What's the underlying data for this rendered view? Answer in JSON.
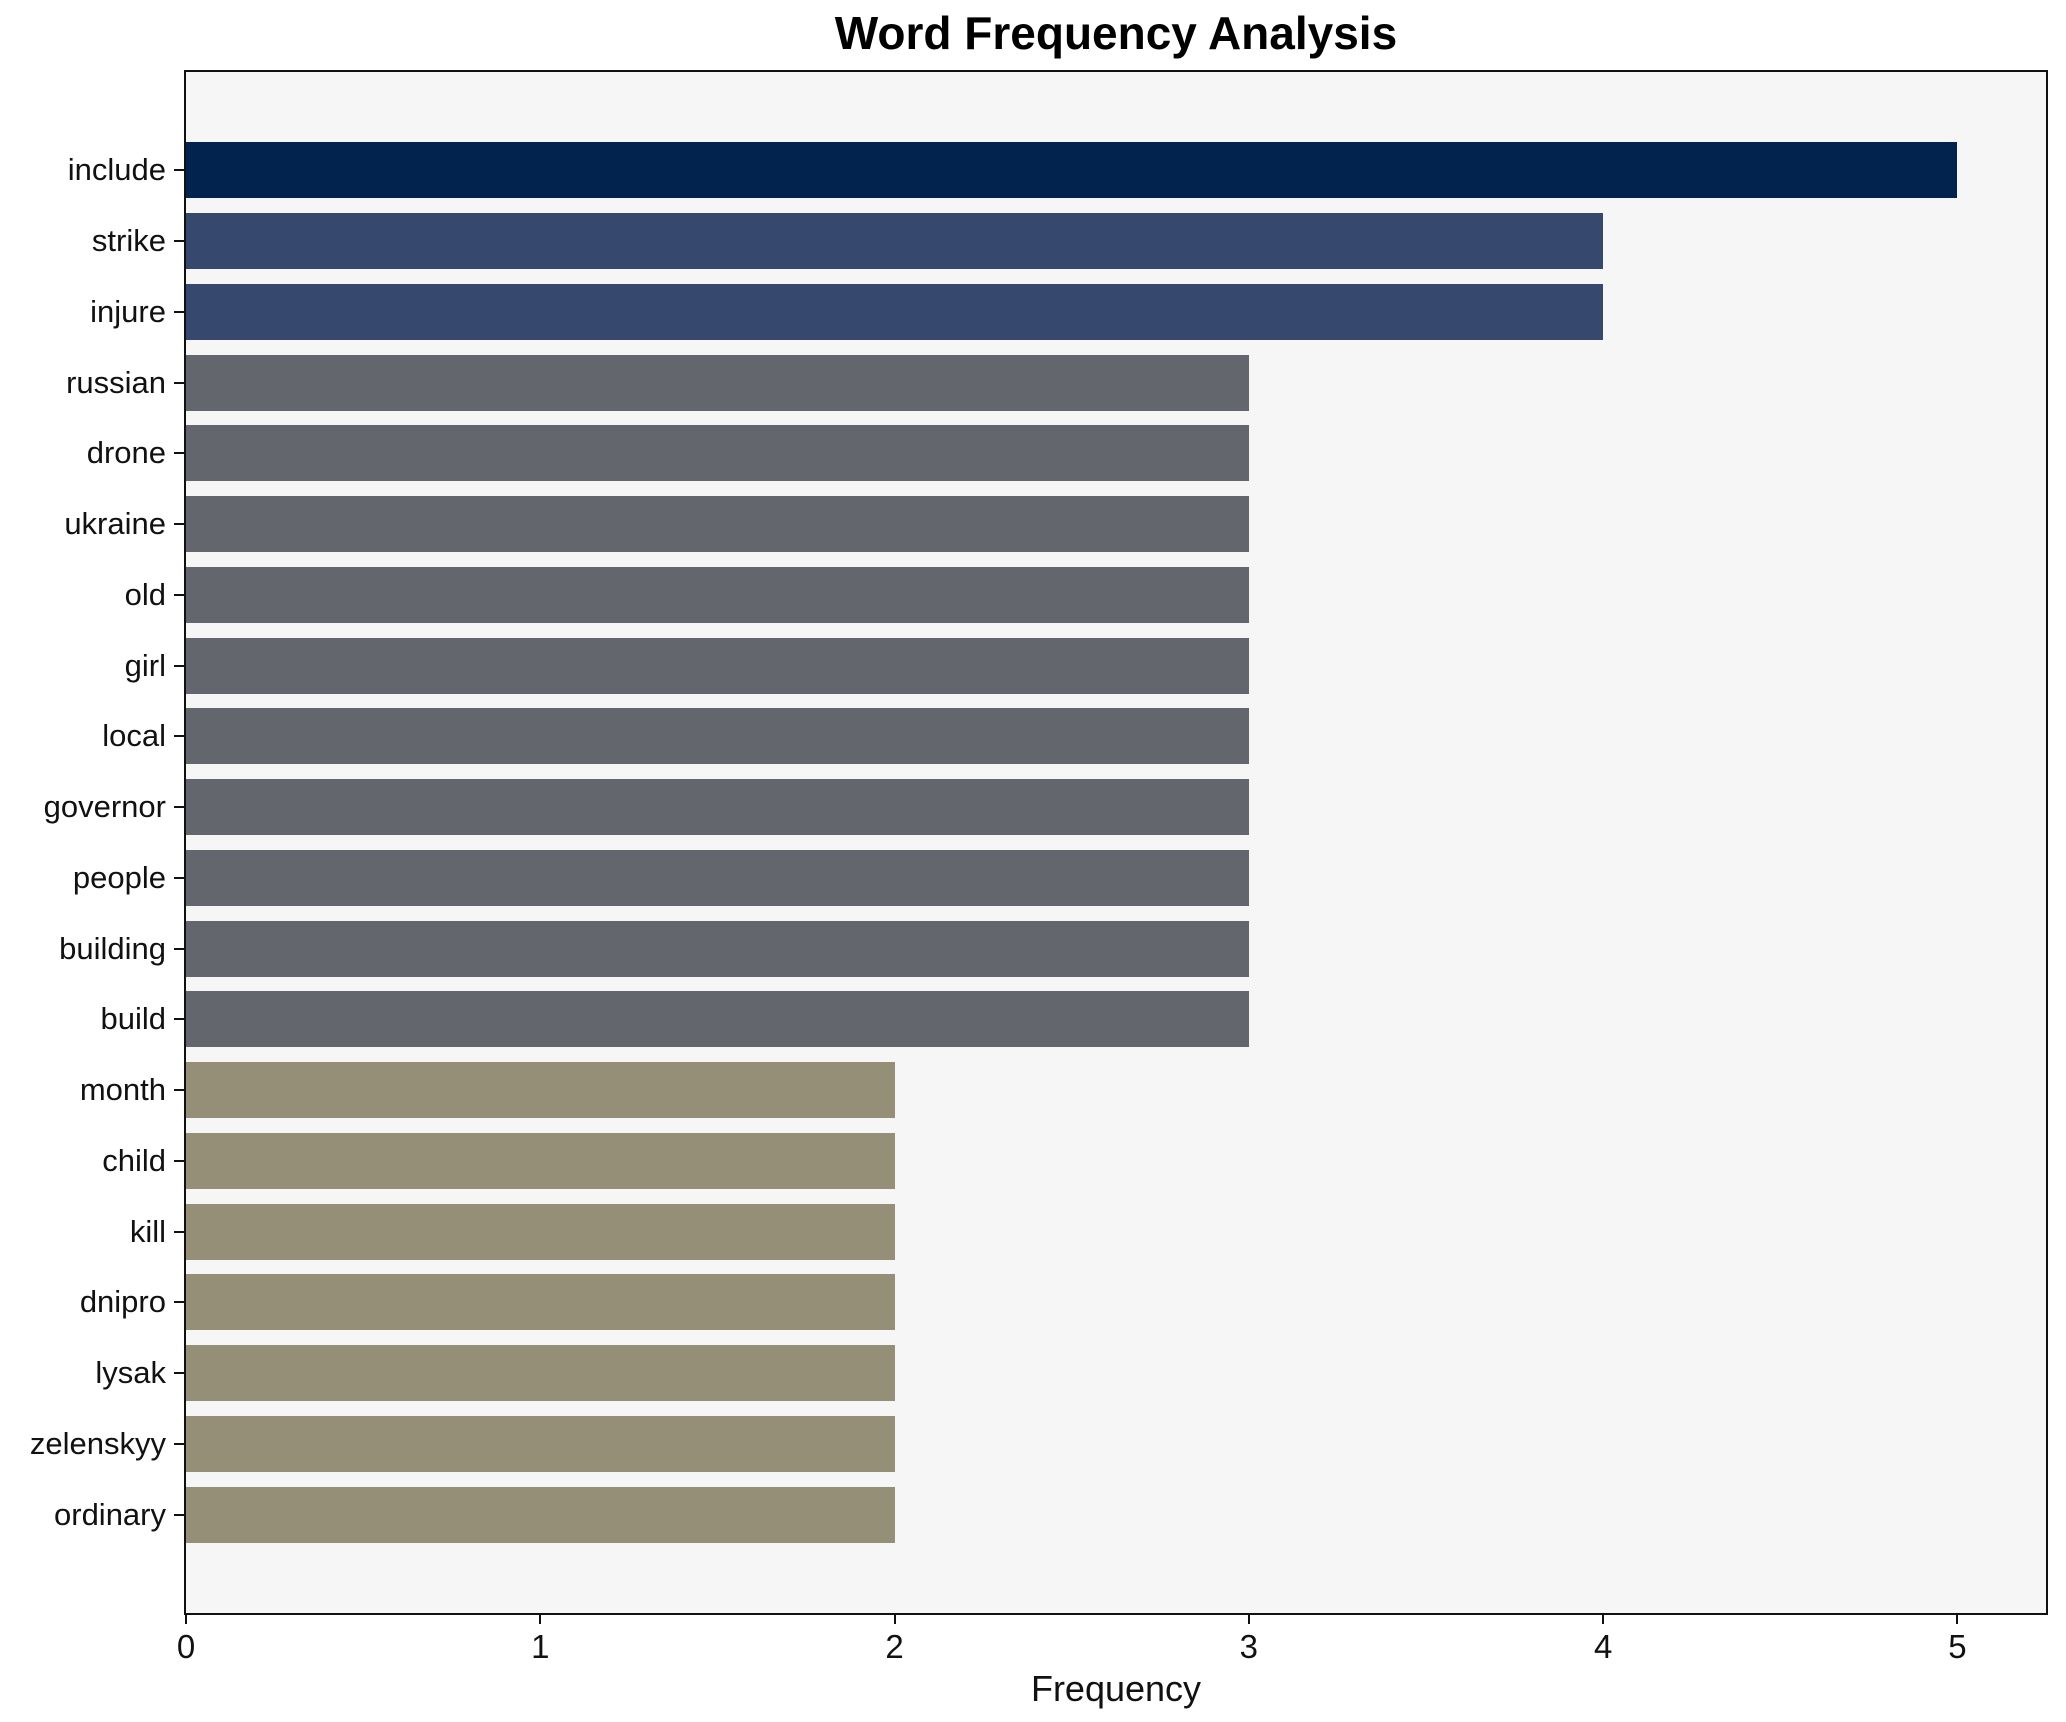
{
  "chart_data": {
    "type": "bar",
    "orientation": "horizontal",
    "title": "Word Frequency Analysis",
    "xlabel": "Frequency",
    "ylabel": "",
    "xlim": [
      0,
      5.25
    ],
    "x_ticks": [
      0,
      1,
      2,
      3,
      4,
      5
    ],
    "grid": false,
    "legend": false,
    "categories": [
      "include",
      "strike",
      "injure",
      "russian",
      "drone",
      "ukraine",
      "old",
      "girl",
      "local",
      "governor",
      "people",
      "building",
      "build",
      "month",
      "child",
      "kill",
      "dnipro",
      "lysak",
      "zelenskyy",
      "ordinary"
    ],
    "values": [
      5,
      4,
      4,
      3,
      3,
      3,
      3,
      3,
      3,
      3,
      3,
      3,
      3,
      2,
      2,
      2,
      2,
      2,
      2,
      2
    ],
    "bar_colors": [
      "#02234E",
      "#36486E",
      "#36486E",
      "#64666E",
      "#64666E",
      "#64666E",
      "#64666E",
      "#64666E",
      "#64666E",
      "#64666E",
      "#64666E",
      "#64666E",
      "#64666E",
      "#948F76",
      "#948F76",
      "#948F76",
      "#948F76",
      "#948F76",
      "#948F76",
      "#948F76"
    ],
    "colors": {
      "freq_5": "#02234E",
      "freq_4": "#36486E",
      "freq_3": "#64666E",
      "freq_2": "#948F76",
      "plot_background": "#F6F6F7",
      "figure_background": "#FFFFFF",
      "axis": "#111111",
      "text": "#111111"
    }
  }
}
